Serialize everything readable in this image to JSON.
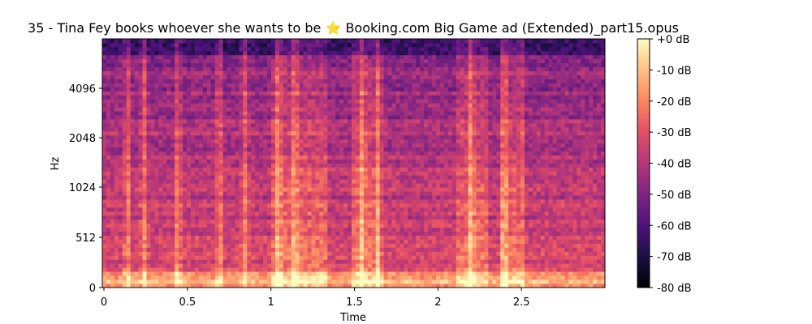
{
  "chart_data": {
    "type": "heatmap",
    "title": "35 - Tina Fey books whoever she wants to be ⭐ Booking.com Big Game ad (Extended)_part15.opus",
    "xlabel": "Time",
    "ylabel": "Hz",
    "xlim": [
      0,
      3.0
    ],
    "x_ticks": [
      {
        "value": 0,
        "label": "0"
      },
      {
        "value": 0.5,
        "label": "0.5"
      },
      {
        "value": 1,
        "label": "1"
      },
      {
        "value": 1.5,
        "label": "1.5"
      },
      {
        "value": 2,
        "label": "2"
      },
      {
        "value": 2.5,
        "label": "2.5"
      }
    ],
    "y_scale": "log-like",
    "y_ticks": [
      {
        "value": 0,
        "label": "0"
      },
      {
        "value": 512,
        "label": "512"
      },
      {
        "value": 1024,
        "label": "1024"
      },
      {
        "value": 2048,
        "label": "2048"
      },
      {
        "value": 4096,
        "label": "4096"
      }
    ],
    "colorbar": {
      "colormap": "magma",
      "range_db": [
        -80,
        0
      ],
      "ticks": [
        {
          "value": 0,
          "label": "+0 dB"
        },
        {
          "value": -10,
          "label": "-10 dB"
        },
        {
          "value": -20,
          "label": "-20 dB"
        },
        {
          "value": -30,
          "label": "-30 dB"
        },
        {
          "value": -40,
          "label": "-40 dB"
        },
        {
          "value": -50,
          "label": "-50 dB"
        },
        {
          "value": -60,
          "label": "-60 dB"
        },
        {
          "value": -70,
          "label": "-70 dB"
        },
        {
          "value": -80,
          "label": "-80 dB"
        }
      ]
    },
    "bright_onsets_s": [
      0.15,
      0.25,
      0.45,
      0.7,
      0.85,
      1.05,
      1.15,
      1.55,
      1.65,
      2.2,
      2.4,
      2.5
    ],
    "loud_segments_s": [
      [
        1.02,
        1.35
      ],
      [
        1.5,
        1.65
      ],
      [
        2.12,
        2.3
      ],
      [
        2.38,
        2.48
      ]
    ]
  }
}
